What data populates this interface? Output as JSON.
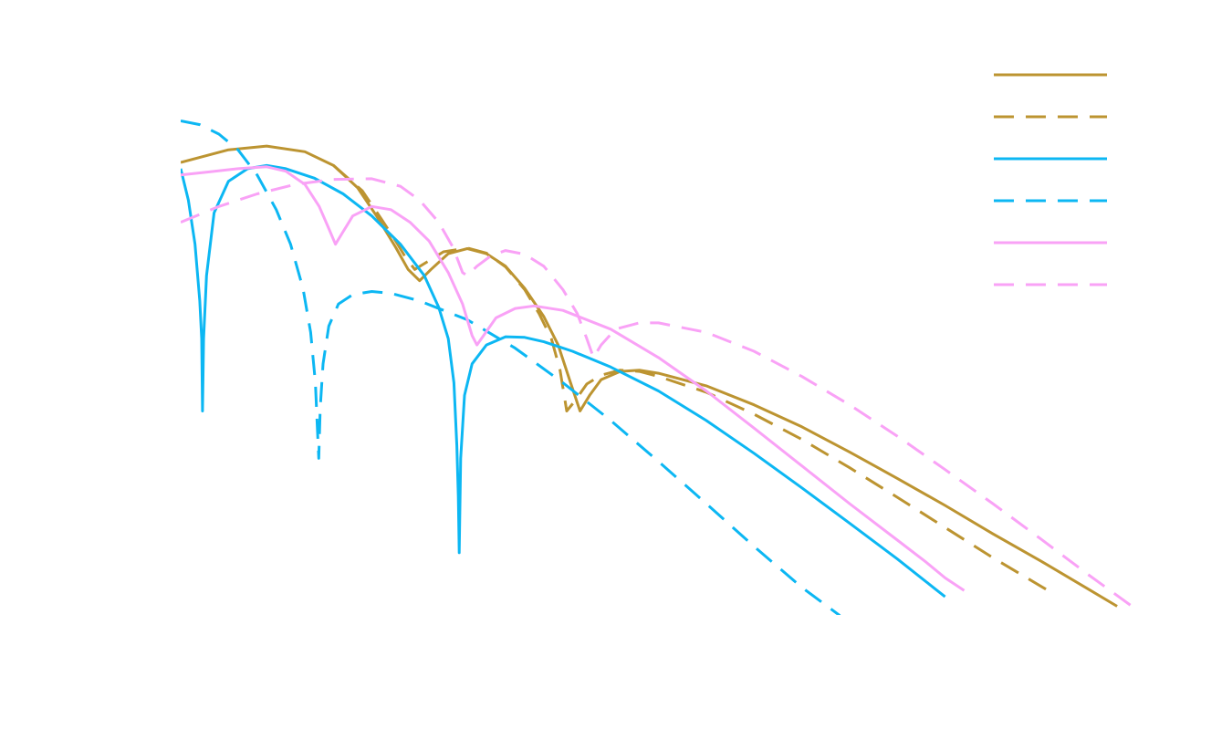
{
  "chart_data": {
    "type": "line",
    "title": "",
    "xlabel": "",
    "ylabel": "",
    "xlim": [
      0,
      1
    ],
    "ylim": [
      0,
      1
    ],
    "grid": false,
    "legend_placement": "top-right",
    "series": [
      {
        "color": "#bc9431",
        "dash": "solid",
        "points": [
          [
            0.0,
            0.8
          ],
          [
            0.05,
            0.82
          ],
          [
            0.09,
            0.826
          ],
          [
            0.13,
            0.817
          ],
          [
            0.16,
            0.795
          ],
          [
            0.185,
            0.76
          ],
          [
            0.205,
            0.715
          ],
          [
            0.225,
            0.665
          ],
          [
            0.238,
            0.63
          ],
          [
            0.25,
            0.612
          ],
          [
            0.262,
            0.63
          ],
          [
            0.28,
            0.655
          ],
          [
            0.3,
            0.663
          ],
          [
            0.32,
            0.655
          ],
          [
            0.34,
            0.635
          ],
          [
            0.36,
            0.6
          ],
          [
            0.38,
            0.555
          ],
          [
            0.395,
            0.51
          ],
          [
            0.408,
            0.45
          ],
          [
            0.418,
            0.405
          ],
          [
            0.428,
            0.43
          ],
          [
            0.44,
            0.455
          ],
          [
            0.46,
            0.468
          ],
          [
            0.48,
            0.47
          ],
          [
            0.5,
            0.465
          ],
          [
            0.55,
            0.445
          ],
          [
            0.6,
            0.415
          ],
          [
            0.65,
            0.38
          ],
          [
            0.7,
            0.34
          ],
          [
            0.75,
            0.298
          ],
          [
            0.8,
            0.255
          ],
          [
            0.85,
            0.21
          ],
          [
            0.9,
            0.167
          ],
          [
            0.95,
            0.122
          ],
          [
            0.98,
            0.095
          ]
        ]
      },
      {
        "color": "#bc9431",
        "dash": "dashed",
        "points": [
          [
            0.16,
            0.795
          ],
          [
            0.19,
            0.755
          ],
          [
            0.21,
            0.71
          ],
          [
            0.225,
            0.675
          ],
          [
            0.235,
            0.65
          ],
          [
            0.245,
            0.63
          ],
          [
            0.258,
            0.642
          ],
          [
            0.275,
            0.658
          ],
          [
            0.3,
            0.664
          ],
          [
            0.32,
            0.656
          ],
          [
            0.34,
            0.634
          ],
          [
            0.36,
            0.598
          ],
          [
            0.375,
            0.56
          ],
          [
            0.388,
            0.52
          ],
          [
            0.397,
            0.47
          ],
          [
            0.404,
            0.405
          ],
          [
            0.412,
            0.42
          ],
          [
            0.425,
            0.448
          ],
          [
            0.44,
            0.462
          ],
          [
            0.46,
            0.47
          ],
          [
            0.48,
            0.468
          ],
          [
            0.5,
            0.46
          ],
          [
            0.55,
            0.435
          ],
          [
            0.6,
            0.4
          ],
          [
            0.65,
            0.36
          ],
          [
            0.7,
            0.315
          ],
          [
            0.75,
            0.268
          ],
          [
            0.8,
            0.22
          ],
          [
            0.85,
            0.172
          ],
          [
            0.88,
            0.145
          ],
          [
            0.91,
            0.118
          ]
        ]
      },
      {
        "color": "#0cb7f3",
        "dash": "solid",
        "points": [
          [
            0.0,
            0.79
          ],
          [
            0.008,
            0.74
          ],
          [
            0.015,
            0.67
          ],
          [
            0.02,
            0.58
          ],
          [
            0.022,
            0.52
          ],
          [
            0.0228,
            0.405
          ],
          [
            0.024,
            0.52
          ],
          [
            0.027,
            0.62
          ],
          [
            0.035,
            0.72
          ],
          [
            0.05,
            0.77
          ],
          [
            0.07,
            0.79
          ],
          [
            0.09,
            0.795
          ],
          [
            0.11,
            0.79
          ],
          [
            0.14,
            0.775
          ],
          [
            0.17,
            0.75
          ],
          [
            0.2,
            0.715
          ],
          [
            0.23,
            0.67
          ],
          [
            0.255,
            0.62
          ],
          [
            0.27,
            0.57
          ],
          [
            0.28,
            0.52
          ],
          [
            0.286,
            0.45
          ],
          [
            0.289,
            0.35
          ],
          [
            0.2905,
            0.27
          ],
          [
            0.2915,
            0.18
          ],
          [
            0.293,
            0.33
          ],
          [
            0.297,
            0.43
          ],
          [
            0.305,
            0.48
          ],
          [
            0.32,
            0.51
          ],
          [
            0.34,
            0.523
          ],
          [
            0.36,
            0.522
          ],
          [
            0.38,
            0.515
          ],
          [
            0.41,
            0.5
          ],
          [
            0.45,
            0.475
          ],
          [
            0.5,
            0.437
          ],
          [
            0.55,
            0.39
          ],
          [
            0.6,
            0.338
          ],
          [
            0.65,
            0.283
          ],
          [
            0.7,
            0.227
          ],
          [
            0.75,
            0.17
          ],
          [
            0.79,
            0.122
          ],
          [
            0.8,
            0.11
          ]
        ]
      },
      {
        "color": "#0cb7f3",
        "dash": "dashed",
        "points": [
          [
            0.0,
            0.866
          ],
          [
            0.02,
            0.86
          ],
          [
            0.04,
            0.845
          ],
          [
            0.06,
            0.82
          ],
          [
            0.08,
            0.78
          ],
          [
            0.1,
            0.725
          ],
          [
            0.115,
            0.67
          ],
          [
            0.128,
            0.6
          ],
          [
            0.136,
            0.53
          ],
          [
            0.141,
            0.45
          ],
          [
            0.143,
            0.38
          ],
          [
            0.1445,
            0.33
          ],
          [
            0.146,
            0.41
          ],
          [
            0.149,
            0.48
          ],
          [
            0.155,
            0.54
          ],
          [
            0.165,
            0.575
          ],
          [
            0.18,
            0.59
          ],
          [
            0.2,
            0.595
          ],
          [
            0.22,
            0.592
          ],
          [
            0.25,
            0.58
          ],
          [
            0.3,
            0.55
          ],
          [
            0.35,
            0.505
          ],
          [
            0.4,
            0.45
          ],
          [
            0.45,
            0.39
          ],
          [
            0.5,
            0.325
          ],
          [
            0.55,
            0.258
          ],
          [
            0.6,
            0.19
          ],
          [
            0.65,
            0.125
          ],
          [
            0.69,
            0.08
          ]
        ]
      },
      {
        "color": "#f9a2f6",
        "dash": "solid",
        "points": [
          [
            0.0,
            0.78
          ],
          [
            0.03,
            0.785
          ],
          [
            0.06,
            0.79
          ],
          [
            0.09,
            0.793
          ],
          [
            0.11,
            0.786
          ],
          [
            0.13,
            0.765
          ],
          [
            0.145,
            0.73
          ],
          [
            0.155,
            0.695
          ],
          [
            0.162,
            0.67
          ],
          [
            0.17,
            0.69
          ],
          [
            0.18,
            0.715
          ],
          [
            0.2,
            0.73
          ],
          [
            0.22,
            0.725
          ],
          [
            0.24,
            0.705
          ],
          [
            0.26,
            0.675
          ],
          [
            0.28,
            0.625
          ],
          [
            0.295,
            0.575
          ],
          [
            0.305,
            0.525
          ],
          [
            0.31,
            0.51
          ],
          [
            0.318,
            0.527
          ],
          [
            0.33,
            0.553
          ],
          [
            0.35,
            0.568
          ],
          [
            0.37,
            0.572
          ],
          [
            0.4,
            0.565
          ],
          [
            0.45,
            0.535
          ],
          [
            0.5,
            0.49
          ],
          [
            0.55,
            0.437
          ],
          [
            0.6,
            0.378
          ],
          [
            0.65,
            0.318
          ],
          [
            0.7,
            0.258
          ],
          [
            0.75,
            0.2
          ],
          [
            0.78,
            0.165
          ],
          [
            0.8,
            0.14
          ],
          [
            0.82,
            0.12
          ]
        ]
      },
      {
        "color": "#f9a2f6",
        "dash": "dashed",
        "points": [
          [
            0.0,
            0.705
          ],
          [
            0.04,
            0.73
          ],
          [
            0.08,
            0.75
          ],
          [
            0.12,
            0.765
          ],
          [
            0.16,
            0.773
          ],
          [
            0.2,
            0.774
          ],
          [
            0.23,
            0.762
          ],
          [
            0.25,
            0.74
          ],
          [
            0.27,
            0.705
          ],
          [
            0.285,
            0.665
          ],
          [
            0.295,
            0.625
          ],
          [
            0.3,
            0.62
          ],
          [
            0.31,
            0.635
          ],
          [
            0.325,
            0.652
          ],
          [
            0.34,
            0.66
          ],
          [
            0.36,
            0.654
          ],
          [
            0.38,
            0.635
          ],
          [
            0.4,
            0.598
          ],
          [
            0.415,
            0.56
          ],
          [
            0.425,
            0.52
          ],
          [
            0.432,
            0.49
          ],
          [
            0.44,
            0.51
          ],
          [
            0.455,
            0.535
          ],
          [
            0.48,
            0.545
          ],
          [
            0.5,
            0.545
          ],
          [
            0.55,
            0.53
          ],
          [
            0.6,
            0.5
          ],
          [
            0.65,
            0.46
          ],
          [
            0.7,
            0.415
          ],
          [
            0.75,
            0.365
          ],
          [
            0.8,
            0.312
          ],
          [
            0.85,
            0.258
          ],
          [
            0.9,
            0.202
          ],
          [
            0.95,
            0.145
          ],
          [
            1.0,
            0.09
          ]
        ]
      }
    ],
    "legend": [
      {
        "color": "#bc9431",
        "dash": "solid"
      },
      {
        "color": "#bc9431",
        "dash": "dashed"
      },
      {
        "color": "#0cb7f3",
        "dash": "solid"
      },
      {
        "color": "#0cb7f3",
        "dash": "dashed"
      },
      {
        "color": "#f9a2f6",
        "dash": "solid"
      },
      {
        "color": "#f9a2f6",
        "dash": "dashed"
      }
    ]
  }
}
